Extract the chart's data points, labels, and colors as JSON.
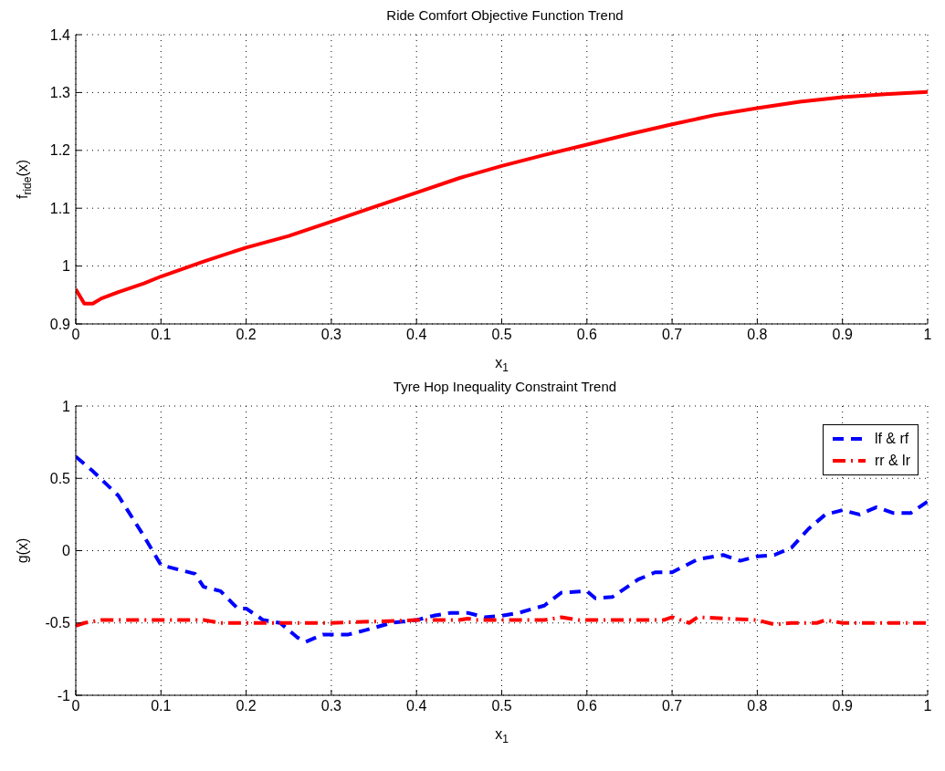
{
  "chart_data": [
    {
      "type": "line",
      "title": "Ride Comfort Objective Function Trend",
      "xlabel": "x$_{1}$",
      "ylabel": "f$_{ride}$(x)",
      "x": [
        0,
        0.01,
        0.02,
        0.03,
        0.05,
        0.08,
        0.1,
        0.15,
        0.2,
        0.25,
        0.3,
        0.35,
        0.4,
        0.45,
        0.5,
        0.55,
        0.6,
        0.65,
        0.7,
        0.75,
        0.8,
        0.85,
        0.9,
        0.95,
        1.0
      ],
      "series": [
        {
          "color": "#ff0000",
          "line_style": "solid",
          "values": [
            0.96,
            0.935,
            0.935,
            0.944,
            0.955,
            0.97,
            0.982,
            1.008,
            1.032,
            1.052,
            1.077,
            1.102,
            1.127,
            1.152,
            1.173,
            1.192,
            1.21,
            1.228,
            1.245,
            1.261,
            1.273,
            1.284,
            1.292,
            1.297,
            1.301
          ]
        }
      ],
      "xlim": [
        0,
        1
      ],
      "xticks": [
        0,
        0.1,
        0.2,
        0.3,
        0.4,
        0.5,
        0.6,
        0.7,
        0.8,
        0.9,
        1
      ],
      "ylim": [
        0.9,
        1.4
      ],
      "yticks": [
        0.9,
        1,
        1.1,
        1.2,
        1.3,
        1.4
      ],
      "grid": true,
      "legend": false,
      "marker": "none"
    },
    {
      "type": "line",
      "title": "Tyre Hop Inequality Constraint Trend",
      "xlabel": "x$_{1}$",
      "ylabel": "g(x)",
      "series": [
        {
          "name": "lf & rf",
          "color": "#0000ff",
          "line_style": "dashed",
          "x": [
            0,
            0.02,
            0.05,
            0.08,
            0.1,
            0.12,
            0.14,
            0.15,
            0.17,
            0.19,
            0.2,
            0.22,
            0.24,
            0.26,
            0.27,
            0.29,
            0.32,
            0.34,
            0.37,
            0.4,
            0.42,
            0.44,
            0.46,
            0.48,
            0.5,
            0.52,
            0.55,
            0.57,
            0.6,
            0.61,
            0.63,
            0.66,
            0.68,
            0.7,
            0.73,
            0.76,
            0.78,
            0.8,
            0.82,
            0.84,
            0.86,
            0.88,
            0.9,
            0.92,
            0.94,
            0.96,
            0.98,
            1.0
          ],
          "values": [
            0.65,
            0.55,
            0.38,
            0.1,
            -0.1,
            -0.13,
            -0.16,
            -0.25,
            -0.28,
            -0.4,
            -0.4,
            -0.48,
            -0.5,
            -0.6,
            -0.63,
            -0.58,
            -0.58,
            -0.55,
            -0.5,
            -0.48,
            -0.45,
            -0.43,
            -0.43,
            -0.46,
            -0.45,
            -0.43,
            -0.38,
            -0.29,
            -0.28,
            -0.33,
            -0.32,
            -0.2,
            -0.15,
            -0.15,
            -0.06,
            -0.03,
            -0.07,
            -0.04,
            -0.03,
            0.02,
            0.15,
            0.25,
            0.28,
            0.25,
            0.3,
            0.26,
            0.26,
            0.34
          ]
        },
        {
          "name": "rr & lr",
          "color": "#ff0000",
          "line_style": "dashdot",
          "x": [
            0,
            0.01,
            0.03,
            0.1,
            0.15,
            0.17,
            0.2,
            0.3,
            0.4,
            0.45,
            0.46,
            0.47,
            0.55,
            0.57,
            0.59,
            0.61,
            0.69,
            0.7,
            0.72,
            0.73,
            0.8,
            0.82,
            0.84,
            0.87,
            0.88,
            0.9,
            1.0
          ],
          "values": [
            -0.52,
            -0.5,
            -0.48,
            -0.48,
            -0.48,
            -0.5,
            -0.5,
            -0.5,
            -0.48,
            -0.48,
            -0.47,
            -0.48,
            -0.48,
            -0.46,
            -0.48,
            -0.48,
            -0.48,
            -0.46,
            -0.5,
            -0.46,
            -0.48,
            -0.51,
            -0.5,
            -0.5,
            -0.48,
            -0.5,
            -0.5
          ]
        }
      ],
      "xlim": [
        0,
        1
      ],
      "xticks": [
        0,
        0.1,
        0.2,
        0.3,
        0.4,
        0.5,
        0.6,
        0.7,
        0.8,
        0.9,
        1
      ],
      "ylim": [
        -1,
        1
      ],
      "yticks": [
        -1,
        -0.5,
        0,
        0.5,
        1
      ],
      "grid": true,
      "legend": "top right",
      "marker": "none"
    }
  ]
}
